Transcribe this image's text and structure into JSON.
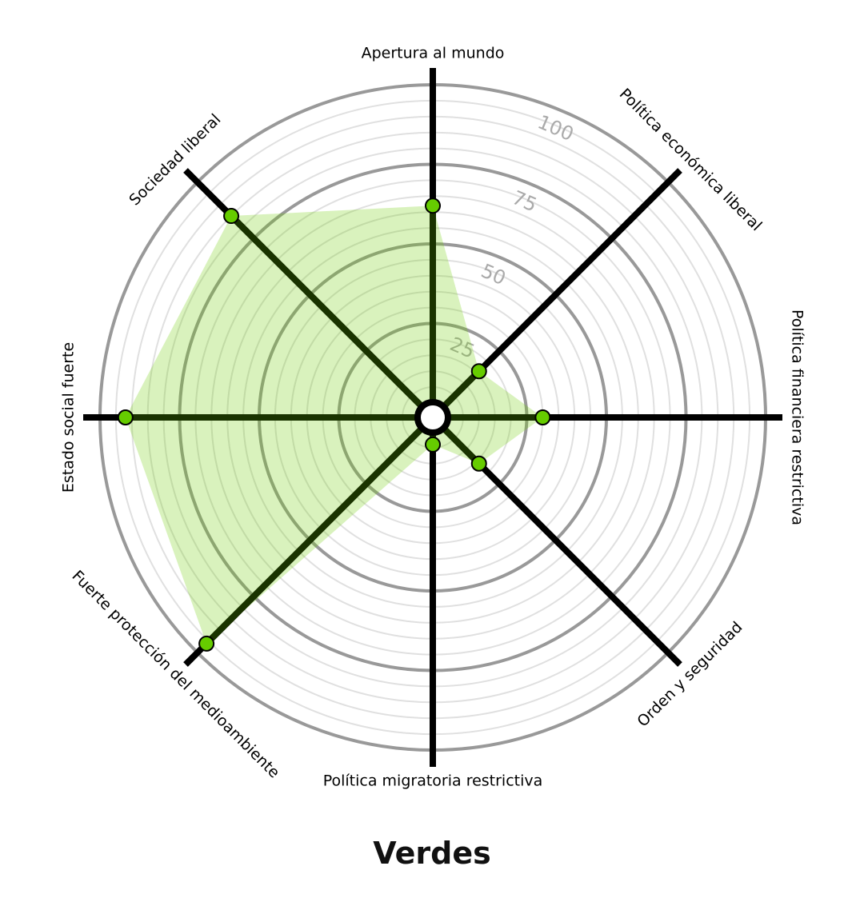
{
  "chart_data": {
    "type": "radar",
    "title": "Verdes",
    "axes": [
      "Apertura al mundo",
      "Política económica liberal",
      "Política financiera restrictiva",
      "Orden y seguridad",
      "Política migratoria restrictiva",
      "Fuerte protección del medioambiente",
      "Estado social fuerte",
      "Sociedad liberal"
    ],
    "values": [
      62,
      16,
      30,
      16,
      4,
      96,
      92,
      85
    ],
    "range": [
      0,
      100
    ],
    "tick_labels": [
      "25",
      "50",
      "75",
      "100"
    ],
    "ticks": [
      25,
      50,
      75,
      100
    ],
    "minor_grid_step": 5,
    "colors": {
      "fill": "#6ccc00",
      "point": "#66cc00",
      "inner_line": "#1a3300",
      "axis": "#000000",
      "major_ring": "#999999",
      "minor_ring": "#e0e0e0",
      "tick_label": "#aaaaaa"
    }
  }
}
